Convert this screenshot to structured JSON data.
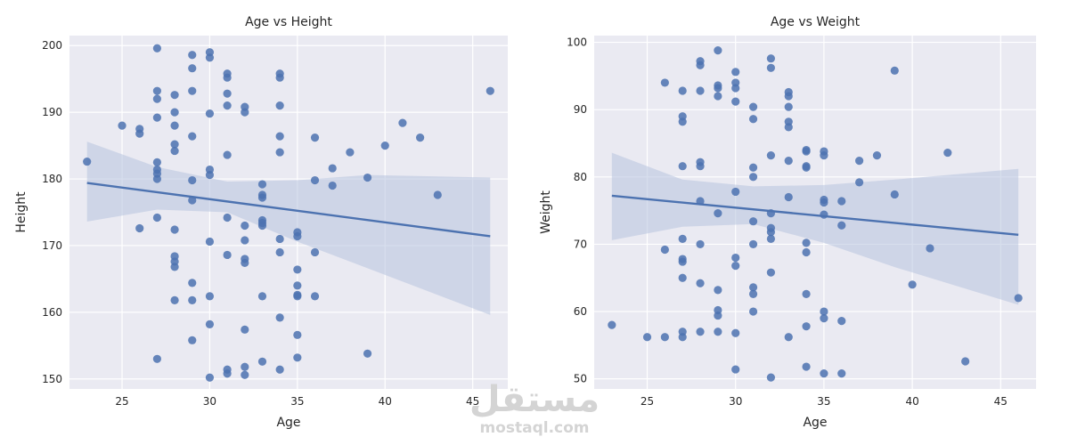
{
  "chart_data": [
    {
      "type": "scatter",
      "title": "Age vs Height",
      "xlabel": "Age",
      "ylabel": "Height",
      "xlim": [
        22,
        47
      ],
      "ylim": [
        148.5,
        201.5
      ],
      "xticks": [
        25,
        30,
        35,
        40,
        45
      ],
      "yticks": [
        150,
        160,
        170,
        180,
        190,
        200
      ],
      "grid": true,
      "colors": {
        "point": "#4c72b0",
        "line": "#4c72b0",
        "band": "#b7c3df",
        "background": "#eaeaf2",
        "grid": "#ffffff"
      },
      "points": [
        [
          23,
          182.6
        ],
        [
          25,
          188
        ],
        [
          26,
          187.5
        ],
        [
          26,
          186.8
        ],
        [
          26,
          172.6
        ],
        [
          27,
          199.6
        ],
        [
          27,
          193.2
        ],
        [
          27,
          192
        ],
        [
          27,
          189.2
        ],
        [
          27,
          182.5
        ],
        [
          27,
          181.4
        ],
        [
          27,
          180.8
        ],
        [
          27,
          180
        ],
        [
          27,
          174.2
        ],
        [
          27,
          153
        ],
        [
          28,
          192.6
        ],
        [
          28,
          190
        ],
        [
          28,
          188
        ],
        [
          28,
          185.2
        ],
        [
          28,
          184.2
        ],
        [
          28,
          172.4
        ],
        [
          28,
          168.4
        ],
        [
          28,
          167.6
        ],
        [
          28,
          166.8
        ],
        [
          28,
          161.8
        ],
        [
          29,
          198.6
        ],
        [
          29,
          196.6
        ],
        [
          29,
          193.2
        ],
        [
          29,
          186.4
        ],
        [
          29,
          179.8
        ],
        [
          29,
          176.8
        ],
        [
          29,
          164.4
        ],
        [
          29,
          161.8
        ],
        [
          29,
          155.8
        ],
        [
          30,
          199
        ],
        [
          30,
          198.2
        ],
        [
          30,
          189.8
        ],
        [
          30,
          181.4
        ],
        [
          30,
          180.6
        ],
        [
          30,
          170.6
        ],
        [
          30,
          162.4
        ],
        [
          30,
          158.2
        ],
        [
          30,
          150.2
        ],
        [
          31,
          195.8
        ],
        [
          31,
          195.2
        ],
        [
          31,
          192.8
        ],
        [
          31,
          191
        ],
        [
          31,
          183.6
        ],
        [
          31,
          174.2
        ],
        [
          31,
          168.6
        ],
        [
          31,
          151.4
        ],
        [
          31,
          150.8
        ],
        [
          32,
          190.8
        ],
        [
          32,
          190
        ],
        [
          32,
          173
        ],
        [
          32,
          170.8
        ],
        [
          32,
          168
        ],
        [
          32,
          167.4
        ],
        [
          32,
          157.4
        ],
        [
          32,
          151.8
        ],
        [
          32,
          150.6
        ],
        [
          33,
          179.2
        ],
        [
          33,
          177.6
        ],
        [
          33,
          177.2
        ],
        [
          33,
          173.8
        ],
        [
          33,
          173.4
        ],
        [
          33,
          173
        ],
        [
          33,
          162.4
        ],
        [
          33,
          152.6
        ],
        [
          34,
          195.8
        ],
        [
          34,
          195.2
        ],
        [
          34,
          191
        ],
        [
          34,
          186.4
        ],
        [
          34,
          184
        ],
        [
          34,
          171
        ],
        [
          34,
          169
        ],
        [
          34,
          159.2
        ],
        [
          34,
          151.4
        ],
        [
          35,
          172
        ],
        [
          35,
          171.4
        ],
        [
          35,
          166.4
        ],
        [
          35,
          164
        ],
        [
          35,
          162.6
        ],
        [
          35,
          162.4
        ],
        [
          35,
          156.6
        ],
        [
          35,
          153.2
        ],
        [
          36,
          186.2
        ],
        [
          36,
          179.8
        ],
        [
          36,
          169
        ],
        [
          36,
          162.4
        ],
        [
          37,
          181.6
        ],
        [
          37,
          179
        ],
        [
          38,
          184
        ],
        [
          39,
          180.2
        ],
        [
          39,
          153.8
        ],
        [
          40,
          185
        ],
        [
          41,
          188.4
        ],
        [
          42,
          186.2
        ],
        [
          43,
          177.6
        ],
        [
          46,
          193.2
        ]
      ],
      "regression": {
        "x": [
          23,
          46
        ],
        "y": [
          179.4,
          171.4
        ]
      },
      "confidence_band": {
        "x": [
          23,
          27,
          31,
          35,
          39,
          46
        ],
        "upper": [
          185.6,
          181.8,
          179.6,
          179.8,
          180.6,
          180.2
        ],
        "lower": [
          173.6,
          175.4,
          175,
          170.6,
          166.6,
          159.6
        ]
      }
    },
    {
      "type": "scatter",
      "title": "Age vs Weight",
      "xlabel": "Age",
      "ylabel": "Weight",
      "xlim": [
        22,
        47
      ],
      "ylim": [
        48.5,
        101
      ],
      "xticks": [
        25,
        30,
        35,
        40,
        45
      ],
      "yticks": [
        50,
        60,
        70,
        80,
        90,
        100
      ],
      "grid": true,
      "colors": {
        "point": "#4c72b0",
        "line": "#4c72b0",
        "band": "#b7c3df",
        "background": "#eaeaf2",
        "grid": "#ffffff"
      },
      "points": [
        [
          23,
          58
        ],
        [
          25,
          56.2
        ],
        [
          26,
          94
        ],
        [
          26,
          69.2
        ],
        [
          26,
          56.2
        ],
        [
          27,
          92.8
        ],
        [
          27,
          89
        ],
        [
          27,
          88.2
        ],
        [
          27,
          81.6
        ],
        [
          27,
          70.8
        ],
        [
          27,
          67.8
        ],
        [
          27,
          67.4
        ],
        [
          27,
          65
        ],
        [
          27,
          57
        ],
        [
          27,
          56.2
        ],
        [
          28,
          97.2
        ],
        [
          28,
          96.6
        ],
        [
          28,
          92.8
        ],
        [
          28,
          82.2
        ],
        [
          28,
          81.6
        ],
        [
          28,
          76.4
        ],
        [
          28,
          70
        ],
        [
          28,
          64.2
        ],
        [
          28,
          57
        ],
        [
          29,
          98.8
        ],
        [
          29,
          93.6
        ],
        [
          29,
          93.2
        ],
        [
          29,
          92
        ],
        [
          29,
          74.6
        ],
        [
          29,
          63.2
        ],
        [
          29,
          60.2
        ],
        [
          29,
          59.4
        ],
        [
          29,
          57
        ],
        [
          30,
          95.6
        ],
        [
          30,
          94
        ],
        [
          30,
          93.2
        ],
        [
          30,
          91.2
        ],
        [
          30,
          77.8
        ],
        [
          30,
          68
        ],
        [
          30,
          66.8
        ],
        [
          30,
          56.8
        ],
        [
          30,
          51.4
        ],
        [
          31,
          90.4
        ],
        [
          31,
          88.6
        ],
        [
          31,
          81.4
        ],
        [
          31,
          80
        ],
        [
          31,
          73.4
        ],
        [
          31,
          70
        ],
        [
          31,
          63.6
        ],
        [
          31,
          62.6
        ],
        [
          31,
          60
        ],
        [
          32,
          97.6
        ],
        [
          32,
          96.2
        ],
        [
          32,
          83.2
        ],
        [
          32,
          74.6
        ],
        [
          32,
          72.4
        ],
        [
          32,
          71.8
        ],
        [
          32,
          70.8
        ],
        [
          32,
          65.8
        ],
        [
          32,
          50.2
        ],
        [
          33,
          92.6
        ],
        [
          33,
          92
        ],
        [
          33,
          90.4
        ],
        [
          33,
          88.2
        ],
        [
          33,
          87.4
        ],
        [
          33,
          82.4
        ],
        [
          33,
          77
        ],
        [
          33,
          56.2
        ],
        [
          34,
          84
        ],
        [
          34,
          83.8
        ],
        [
          34,
          81.6
        ],
        [
          34,
          81.4
        ],
        [
          34,
          70.2
        ],
        [
          34,
          68.8
        ],
        [
          34,
          62.6
        ],
        [
          34,
          57.8
        ],
        [
          34,
          51.8
        ],
        [
          35,
          83.8
        ],
        [
          35,
          83.2
        ],
        [
          35,
          76.6
        ],
        [
          35,
          76.2
        ],
        [
          35,
          74.4
        ],
        [
          35,
          60
        ],
        [
          35,
          59
        ],
        [
          35,
          50.8
        ],
        [
          36,
          76.4
        ],
        [
          36,
          72.8
        ],
        [
          36,
          58.6
        ],
        [
          36,
          50.8
        ],
        [
          37,
          82.4
        ],
        [
          37,
          79.2
        ],
        [
          38,
          83.2
        ],
        [
          39,
          95.8
        ],
        [
          39,
          77.4
        ],
        [
          40,
          64
        ],
        [
          41,
          69.4
        ],
        [
          42,
          83.6
        ],
        [
          43,
          52.6
        ],
        [
          46,
          62
        ]
      ],
      "regression": {
        "x": [
          23,
          46
        ],
        "y": [
          77.2,
          71.4
        ]
      },
      "confidence_band": {
        "x": [
          23,
          27,
          31,
          35,
          39,
          46
        ],
        "upper": [
          83.6,
          79.6,
          78.6,
          78.8,
          79.6,
          81.2
        ],
        "lower": [
          70.6,
          72.6,
          73,
          70.2,
          66.6,
          61
        ]
      }
    }
  ],
  "watermark": {
    "logo_text": "مستقل",
    "site": "mostaql.com"
  }
}
